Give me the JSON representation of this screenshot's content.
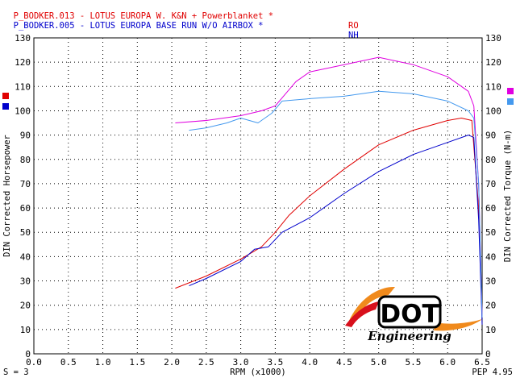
{
  "header": {
    "line1": {
      "text": "P_BODKER.013 - LOTUS EUROPA W. K&N + Powerblanket *",
      "tag": "RO",
      "color": "#e00000"
    },
    "line2": {
      "text": "P_BODKER.005 - LOTUS EUROPA BASE RUN W/O AIRBOX *",
      "tag": "NH",
      "color": "#0000cc"
    }
  },
  "footer": {
    "smoothing": "S = 3",
    "pep": "PEP 4.95"
  },
  "logo": {
    "name": "DOT",
    "sub": "Engineering"
  },
  "chart_data": {
    "type": "line",
    "xlabel": "RPM (x1000)",
    "ylabel_left": "DIN Corrected Horsepower",
    "ylabel_right": "DIN Corrected Torque (N-m)",
    "xlim": [
      0,
      6.5
    ],
    "ylim": [
      0,
      130
    ],
    "xticks": [
      "0.0",
      "0.5",
      "1.0",
      "1.5",
      "2.0",
      "2.5",
      "3.0",
      "3.5",
      "4.0",
      "4.5",
      "5.0",
      "5.5",
      "6.0",
      "6.5"
    ],
    "yticks_left": [
      "0",
      "10",
      "20",
      "30",
      "40",
      "50",
      "60",
      "70",
      "80",
      "90",
      "100",
      "110",
      "120",
      "130"
    ],
    "yticks_right": [
      "0",
      "10",
      "20",
      "30",
      "40",
      "50",
      "60",
      "70",
      "80",
      "90",
      "100",
      "110",
      "120",
      "130"
    ],
    "grid": true,
    "legend_left": [
      "#e00000",
      "#0000cc"
    ],
    "legend_right": [
      "#e000e0",
      "#4499ee"
    ],
    "series": [
      {
        "color": "#e00000",
        "x": [
          2.05,
          2.5,
          3.0,
          3.3,
          3.5,
          3.7,
          4.0,
          4.5,
          5.0,
          5.5,
          6.0,
          6.2,
          6.35,
          6.45,
          6.5
        ],
        "y": [
          27,
          32,
          39,
          44,
          50,
          57,
          65,
          76,
          86,
          92,
          96,
          97,
          96,
          60,
          15
        ]
      },
      {
        "color": "#0000cc",
        "x": [
          2.25,
          2.5,
          3.0,
          3.2,
          3.4,
          3.6,
          4.0,
          4.5,
          5.0,
          5.5,
          6.0,
          6.3,
          6.38,
          6.45,
          6.5
        ],
        "y": [
          28,
          31,
          38,
          43,
          44,
          50,
          56,
          66,
          75,
          82,
          87,
          90,
          89,
          55,
          12
        ]
      },
      {
        "color": "#e000e0",
        "x": [
          2.05,
          2.5,
          3.0,
          3.3,
          3.5,
          3.8,
          4.0,
          4.5,
          5.0,
          5.5,
          6.0,
          6.3,
          6.38,
          6.45,
          6.5
        ],
        "y": [
          95,
          96,
          98,
          100,
          102,
          112,
          116,
          119,
          122,
          119,
          114,
          108,
          102,
          70,
          15
        ]
      },
      {
        "color": "#4499ee",
        "x": [
          2.25,
          2.5,
          2.8,
          3.0,
          3.25,
          3.45,
          3.6,
          4.0,
          4.5,
          5.0,
          5.5,
          6.0,
          6.3,
          6.38,
          6.45,
          6.5
        ],
        "y": [
          92,
          93,
          95,
          97,
          95,
          99,
          104,
          105,
          106,
          108,
          107,
          104,
          100,
          97,
          70,
          15
        ]
      }
    ]
  }
}
